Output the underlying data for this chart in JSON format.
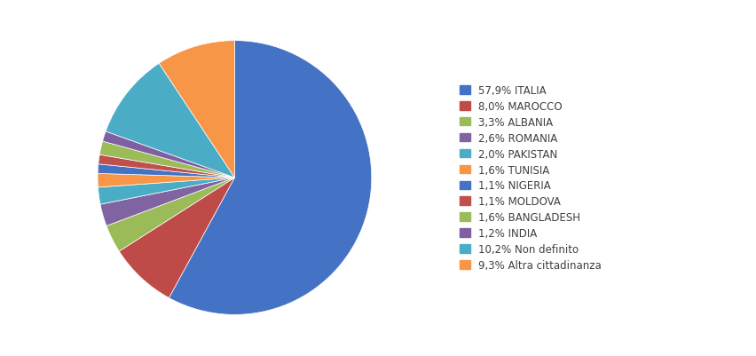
{
  "labels": [
    "57,9% ITALIA",
    "8,0% MAROCCO",
    "3,3% ALBANIA",
    "2,6% ROMANIA",
    "2,0% PAKISTAN",
    "1,6% TUNISIA",
    "1,1% NIGERIA",
    "1,1% MOLDOVA",
    "1,6% BANGLADESH",
    "1,2% INDIA",
    "10,2% Non definito",
    "9,3% Altra cittadinanza"
  ],
  "values": [
    57.9,
    8.0,
    3.3,
    2.6,
    2.0,
    1.6,
    1.1,
    1.1,
    1.6,
    1.2,
    10.2,
    9.3
  ],
  "colors": [
    "#4472C4",
    "#BE4B48",
    "#9BBB59",
    "#8064A2",
    "#4BACC6",
    "#F79646",
    "#4472C4",
    "#C0504D",
    "#9CBB59",
    "#7F5FA2",
    "#4BACC6",
    "#F79646"
  ],
  "background_color": "#FFFFFF",
  "figsize": [
    8.53,
    4.02
  ],
  "dpi": 100
}
